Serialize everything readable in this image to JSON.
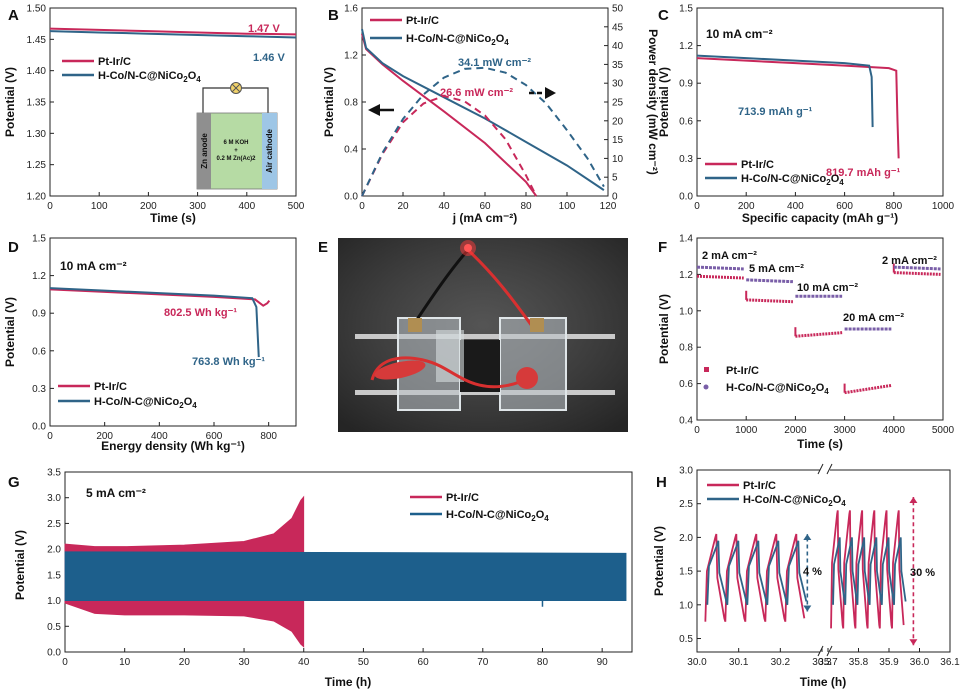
{
  "colors": {
    "ptir": "#c8285a",
    "hco": "#2f6488",
    "photo_bg": "#3a3a3a"
  },
  "chart_data": [
    {
      "panel": "A",
      "type": "line",
      "xlabel": "Time (s)",
      "ylabel": "Potential (V)",
      "xlim": [
        0,
        500
      ],
      "ylim": [
        1.2,
        1.5
      ],
      "xticks": [
        0,
        100,
        200,
        300,
        400,
        500
      ],
      "yticks": [
        1.2,
        1.25,
        1.3,
        1.35,
        1.4,
        1.45,
        1.5
      ],
      "ytick_labels": [
        "1.20",
        "1.25",
        "1.30",
        "1.35",
        "1.40",
        "1.45",
        "1.50"
      ],
      "series": [
        {
          "name": "Pt-Ir/C",
          "color": "#c8285a",
          "x": [
            0,
            100,
            200,
            300,
            400,
            500
          ],
          "y": [
            1.467,
            1.465,
            1.463,
            1.461,
            1.459,
            1.458
          ]
        },
        {
          "name": "H-Co/N-C@NiCo2O4",
          "color": "#2f6488",
          "x": [
            0,
            100,
            200,
            300,
            400,
            500
          ],
          "y": [
            1.463,
            1.461,
            1.459,
            1.457,
            1.455,
            1.453
          ]
        }
      ],
      "annotations": [
        "1.47 V",
        "1.46 V"
      ],
      "inset": {
        "labels": [
          "Zn anode",
          "6 M KOH",
          "+",
          "0.2 M Zn(Ac)2",
          "Air cathode"
        ]
      }
    },
    {
      "panel": "B",
      "type": "line",
      "xlabel": "j (mA cm⁻²)",
      "ylabel": "Potential (V)",
      "y2label": "Power density (mW cm⁻²)",
      "xlim": [
        0,
        120
      ],
      "ylim": [
        0,
        1.6
      ],
      "y2lim": [
        0,
        50
      ],
      "xticks": [
        0,
        20,
        40,
        60,
        80,
        100,
        120
      ],
      "yticks": [
        0,
        0.4,
        0.8,
        1.2,
        1.6
      ],
      "ytick_labels": [
        "0.0",
        "0.4",
        "0.8",
        "1.2",
        "1.6"
      ],
      "y2ticks": [
        0,
        5,
        10,
        15,
        20,
        25,
        30,
        35,
        40,
        45,
        50
      ],
      "series": [
        {
          "name": "Pt-Ir/C",
          "color": "#c8285a",
          "axis": "left",
          "x": [
            0,
            2,
            10,
            20,
            40,
            60,
            80,
            85
          ],
          "y": [
            1.38,
            1.25,
            1.12,
            0.98,
            0.72,
            0.45,
            0.12,
            0.0
          ]
        },
        {
          "name": "H-Co/N-C@NiCo2O4",
          "color": "#2f6488",
          "axis": "left",
          "x": [
            0,
            2,
            10,
            20,
            40,
            60,
            80,
            100,
            118
          ],
          "y": [
            1.42,
            1.26,
            1.13,
            1.02,
            0.84,
            0.66,
            0.46,
            0.26,
            0.05
          ]
        },
        {
          "name": "Pt-Ir/C power",
          "color": "#c8285a",
          "axis": "right",
          "dashed": true,
          "x": [
            0,
            10,
            20,
            30,
            40,
            50,
            60,
            70,
            80,
            85
          ],
          "y": [
            0,
            11.2,
            19.6,
            24.6,
            26.6,
            25.2,
            21.4,
            15.1,
            5.5,
            0
          ]
        },
        {
          "name": "H-Co/N-C@NiCo2O4 power",
          "color": "#2f6488",
          "axis": "right",
          "dashed": true,
          "x": [
            0,
            10,
            20,
            30,
            40,
            50,
            60,
            70,
            80,
            90,
            100,
            110,
            118
          ],
          "y": [
            0,
            11.5,
            20.5,
            27.0,
            31.5,
            33.8,
            34.1,
            32.8,
            29.5,
            24.5,
            17.5,
            10.0,
            2.5
          ]
        }
      ],
      "annotations": [
        "34.1 mW cm⁻²",
        "26.6 mW cm⁻²"
      ]
    },
    {
      "panel": "C",
      "type": "line",
      "condition": "10 mA cm⁻²",
      "xlabel": "Specific capacity (mAh g⁻¹)",
      "ylabel": "Potential (V)",
      "xlim": [
        0,
        1000
      ],
      "ylim": [
        0,
        1.5
      ],
      "xticks": [
        0,
        200,
        400,
        600,
        800,
        1000
      ],
      "yticks": [
        0,
        0.3,
        0.6,
        0.9,
        1.2,
        1.5
      ],
      "ytick_labels": [
        "0.0",
        "0.3",
        "0.6",
        "0.9",
        "1.2",
        "1.5"
      ],
      "series": [
        {
          "name": "Pt-Ir/C",
          "color": "#c8285a",
          "x": [
            0,
            200,
            400,
            600,
            780,
            810,
            815,
            819.7
          ],
          "y": [
            1.1,
            1.08,
            1.06,
            1.04,
            1.02,
            1.0,
            0.6,
            0.3
          ]
        },
        {
          "name": "H-Co/N-C@NiCo2O4",
          "color": "#2f6488",
          "x": [
            0,
            200,
            400,
            600,
            700,
            710,
            713.9
          ],
          "y": [
            1.12,
            1.1,
            1.08,
            1.06,
            1.04,
            0.95,
            0.55
          ]
        }
      ],
      "annotations": [
        "713.9 mAh g⁻¹",
        "819.7 mAh g⁻¹"
      ]
    },
    {
      "panel": "D",
      "type": "line",
      "condition": "10 mA cm⁻²",
      "xlabel": "Energy density (Wh kg⁻¹)",
      "ylabel": "Potential (V)",
      "xlim": [
        0,
        900
      ],
      "ylim": [
        0,
        1.5
      ],
      "xticks": [
        0,
        200,
        400,
        600,
        800
      ],
      "yticks": [
        0,
        0.3,
        0.6,
        0.9,
        1.2,
        1.5
      ],
      "ytick_labels": [
        "0.0",
        "0.3",
        "0.6",
        "0.9",
        "1.2",
        "1.5"
      ],
      "series": [
        {
          "name": "Pt-Ir/C",
          "color": "#c8285a",
          "x": [
            0,
            200,
            400,
            600,
            750,
            780,
            795,
            802.5
          ],
          "y": [
            1.09,
            1.07,
            1.05,
            1.03,
            1.01,
            0.96,
            0.98,
            1.0
          ]
        },
        {
          "name": "H-Co/N-C@NiCo2O4",
          "color": "#2f6488",
          "x": [
            0,
            200,
            400,
            600,
            740,
            755,
            763.8
          ],
          "y": [
            1.1,
            1.08,
            1.06,
            1.04,
            1.02,
            0.95,
            0.55
          ]
        }
      ],
      "annotations": [
        "802.5 Wh kg⁻¹",
        "763.8 Wh kg⁻¹"
      ]
    },
    {
      "panel": "F",
      "type": "scatter",
      "xlabel": "Time (s)",
      "ylabel": "Potential (V)",
      "xlim": [
        0,
        5000
      ],
      "ylim": [
        0.4,
        1.4
      ],
      "xticks": [
        0,
        1000,
        2000,
        3000,
        4000,
        5000
      ],
      "yticks": [
        0.4,
        0.6,
        0.8,
        1.0,
        1.2,
        1.4
      ],
      "ytick_labels": [
        "0.4",
        "0.6",
        "0.8",
        "1.0",
        "1.2",
        "1.4"
      ],
      "series": [
        {
          "name": "Pt-Ir/C",
          "color": "#c8285a",
          "segments": [
            [
              0,
              950,
              1.19,
              1.18
            ],
            [
              1000,
              1950,
              1.06,
              1.05
            ],
            [
              2000,
              2950,
              0.86,
              0.88
            ],
            [
              3000,
              3950,
              0.55,
              0.59
            ],
            [
              4000,
              4950,
              1.21,
              1.2
            ]
          ]
        },
        {
          "name": "H-Co/N-C@NiCo2O4",
          "color": "#7a5fa8",
          "segments": [
            [
              0,
              950,
              1.24,
              1.23
            ],
            [
              1000,
              1950,
              1.17,
              1.16
            ],
            [
              2000,
              2950,
              1.08,
              1.08
            ],
            [
              3000,
              3950,
              0.9,
              0.9
            ],
            [
              4000,
              4950,
              1.24,
              1.23
            ]
          ]
        }
      ],
      "annotations": [
        "2 mA cm⁻²",
        "5 mA cm⁻²",
        "10 mA cm⁻²",
        "20 mA cm⁻²",
        "2 mA cm⁻²"
      ]
    },
    {
      "panel": "G",
      "type": "area",
      "condition": "5 mA cm⁻²",
      "xlabel": "Time (h)",
      "ylabel": "Potential (V)",
      "xlim": [
        0,
        95
      ],
      "ylim": [
        0,
        3.5
      ],
      "xticks": [
        0,
        10,
        20,
        30,
        40,
        50,
        60,
        70,
        80,
        90
      ],
      "yticks": [
        0,
        0.5,
        1.0,
        1.5,
        2.0,
        2.5,
        3.0,
        3.5
      ],
      "ytick_labels": [
        "0.0",
        "0.5",
        "1.0",
        "1.5",
        "2.0",
        "2.5",
        "3.0",
        "3.5"
      ],
      "series": [
        {
          "name": "Pt-Ir/C",
          "color": "#c8285a",
          "x": [
            0,
            5,
            10,
            20,
            30,
            35,
            38,
            39.5,
            40
          ],
          "upper": [
            2.1,
            2.05,
            2.05,
            2.08,
            2.15,
            2.3,
            2.6,
            2.95,
            3.02
          ],
          "lower": [
            0.95,
            0.75,
            0.72,
            0.72,
            0.7,
            0.6,
            0.4,
            0.15,
            0.1
          ]
        },
        {
          "name": "H-Co/N-C@NiCo2O4",
          "color": "#1d5f8c",
          "x": [
            0,
            94
          ],
          "upper": [
            1.95,
            1.92
          ],
          "lower": [
            1.0,
            1.0
          ]
        }
      ]
    },
    {
      "panel": "H",
      "type": "line",
      "xlabel": "Time (h)",
      "ylabel": "Potential (V)",
      "xticks_left": [
        30.0,
        30.1,
        30.2,
        30.3
      ],
      "xticks_right": [
        35.7,
        35.8,
        35.9,
        36.0,
        36.1
      ],
      "xtick_labels": [
        "30.0",
        "30.1",
        "30.2",
        "30.3",
        "35.7",
        "35.8",
        "35.9",
        "36.0",
        "36.1"
      ],
      "ylim": [
        0.3,
        3.0
      ],
      "yticks": [
        0.5,
        1.0,
        1.5,
        2.0,
        2.5,
        3.0
      ],
      "ytick_labels": [
        "0.5",
        "1.0",
        "1.5",
        "2.0",
        "2.5",
        "3.0"
      ],
      "series": [
        {
          "name": "Pt-Ir/C",
          "color": "#c8285a",
          "segment1": {
            "low": 0.75,
            "high": 2.05
          },
          "segment2": {
            "low": 0.65,
            "high": 2.4
          }
        },
        {
          "name": "H-Co/N-C@NiCo2O4",
          "color": "#2f6488",
          "segment1": {
            "low": 1.0,
            "high": 1.95
          },
          "segment2": {
            "low": 1.0,
            "high": 2.0
          }
        }
      ],
      "annotations": [
        "4 %",
        "30 %"
      ]
    }
  ],
  "labels": {
    "A": "A",
    "B": "B",
    "C": "C",
    "D": "D",
    "E": "E",
    "F": "F",
    "G": "G",
    "H": "H",
    "legend_ptir": "Pt-Ir/C",
    "legend_hco": "H-Co/N-C@NiCo",
    "legend_sub2": "2",
    "legend_o": "O",
    "legend_sub4": "4"
  }
}
